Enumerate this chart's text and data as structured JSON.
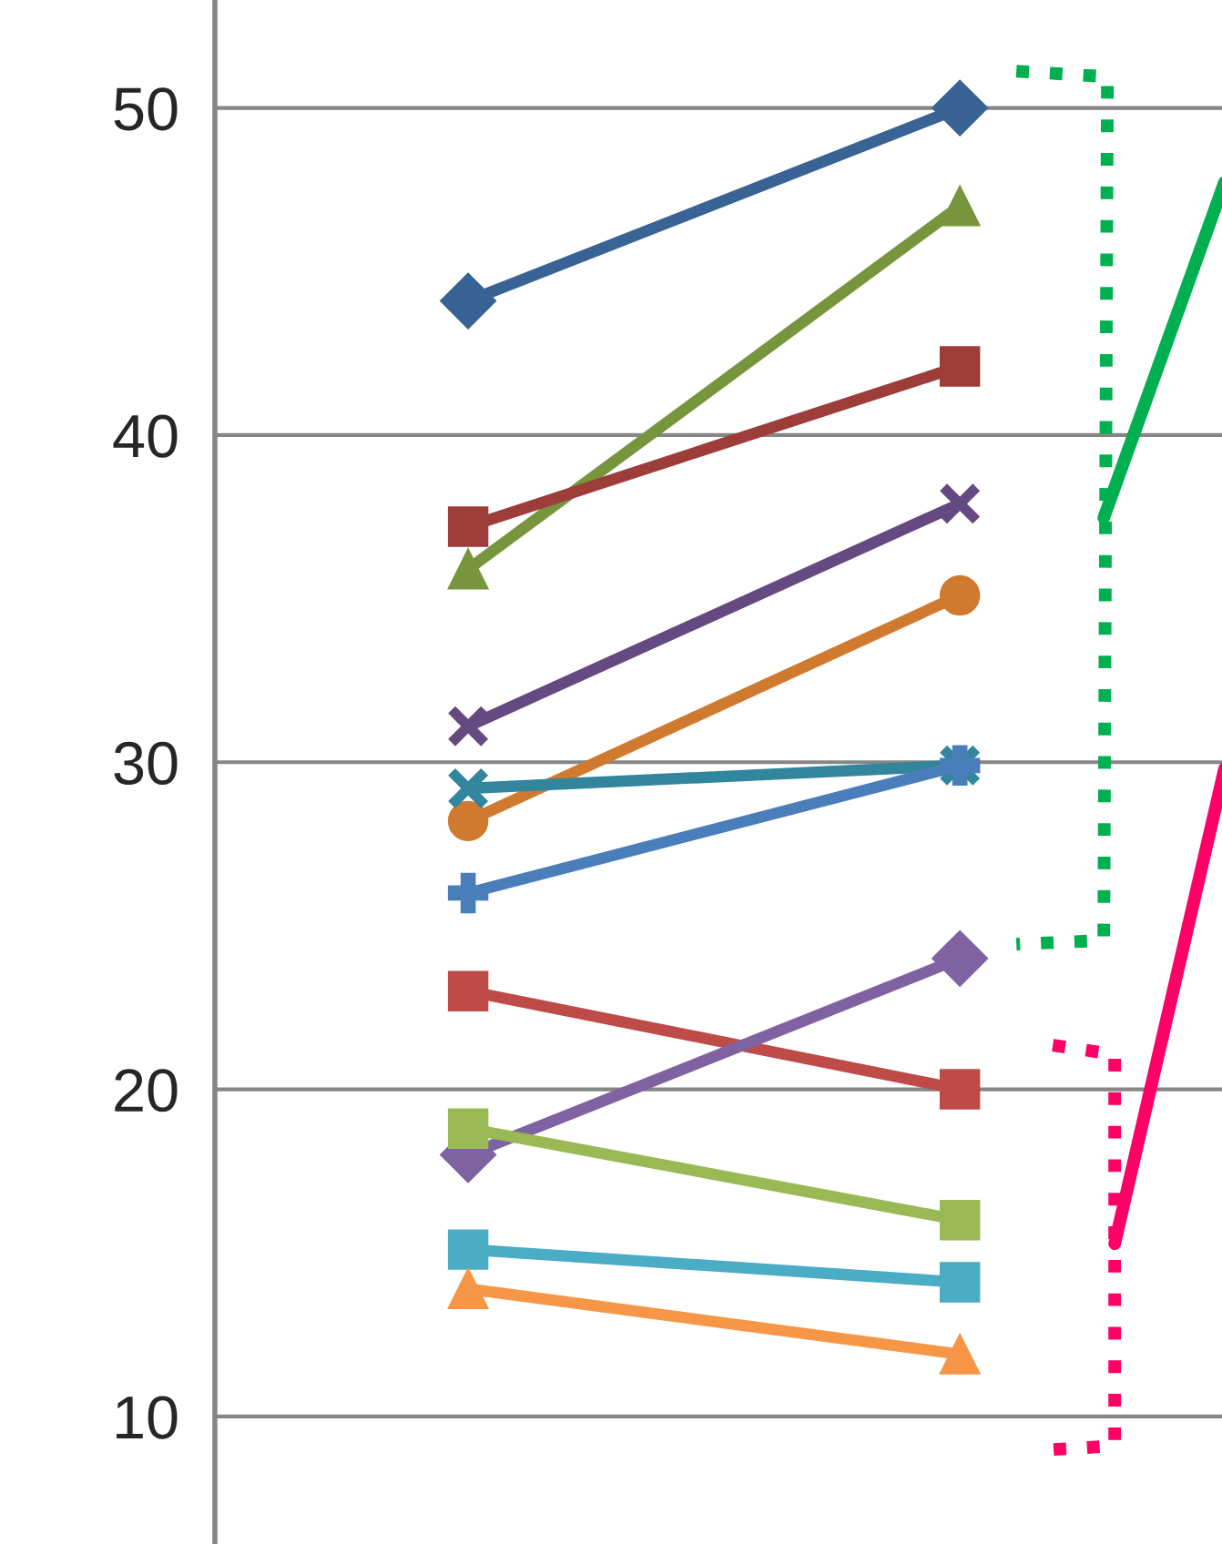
{
  "chart_data": {
    "type": "line",
    "categories": [
      null,
      null
    ],
    "ylim": [
      6.1,
      53.3
    ],
    "yticks": [
      10,
      20,
      30,
      40,
      50
    ],
    "grid": "y",
    "tick_labels": "y",
    "legend": false,
    "line_style": "solid",
    "series": [
      {
        "color": "#386394",
        "marker": "diamond",
        "values": [
          44.1,
          50.0
        ]
      },
      {
        "color": "#77953D",
        "marker": "triangle",
        "values": [
          35.9,
          47.0
        ]
      },
      {
        "color": "#9D3D3A",
        "marker": "square",
        "values": [
          37.2,
          42.1
        ]
      },
      {
        "color": "#654A82",
        "marker": "cross",
        "values": [
          31.1,
          37.9
        ]
      },
      {
        "color": "#D07A30",
        "marker": "circle",
        "values": [
          28.2,
          35.1
        ]
      },
      {
        "color": "#31859C",
        "marker": "cross",
        "values": [
          29.2,
          29.9
        ]
      },
      {
        "color": "#4A7EBB",
        "marker": "plus",
        "values": [
          26.0,
          29.9
        ]
      },
      {
        "color": "#BE4B48",
        "marker": "square",
        "values": [
          23.0,
          20.0
        ]
      },
      {
        "color": "#7E62A1",
        "marker": "diamond",
        "values": [
          18.0,
          24.0
        ]
      },
      {
        "color": "#98B954",
        "marker": "square",
        "values": [
          18.8,
          16.0
        ]
      },
      {
        "color": "#4AACC5",
        "marker": "square",
        "values": [
          15.1,
          14.1
        ]
      },
      {
        "color": "#F79646",
        "marker": "triangle",
        "values": [
          13.9,
          11.9
        ]
      }
    ]
  }
}
